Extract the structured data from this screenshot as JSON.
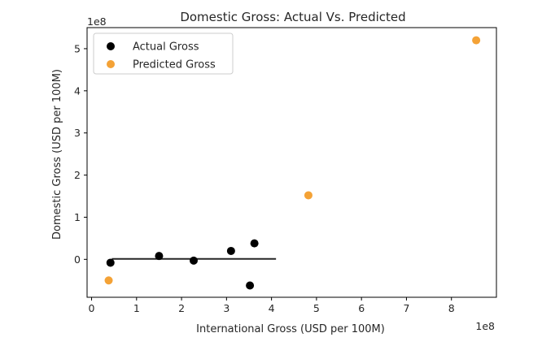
{
  "chart_data": {
    "type": "scatter",
    "title": "Domestic Gross: Actual Vs. Predicted",
    "xlabel": "International Gross (USD per 100M)",
    "ylabel": "Domestic Gross (USD per 100M)",
    "x_offset_text": "1e8",
    "y_offset_text": "1e8",
    "xlim": [
      -0.1,
      9.0
    ],
    "ylim": [
      -0.9,
      5.5
    ],
    "xticks": [
      0,
      1,
      2,
      3,
      4,
      5,
      6,
      7,
      8
    ],
    "yticks": [
      0,
      1,
      2,
      3,
      4,
      5
    ],
    "legend_position": "top-left",
    "grid": false,
    "series": [
      {
        "name": "Actual Gross",
        "color": "#000000",
        "points": [
          {
            "x": 0.42,
            "y": -0.08
          },
          {
            "x": 1.5,
            "y": 0.08
          },
          {
            "x": 2.27,
            "y": -0.03
          },
          {
            "x": 3.1,
            "y": 0.2
          },
          {
            "x": 3.52,
            "y": -0.62
          },
          {
            "x": 3.62,
            "y": 0.38
          }
        ]
      },
      {
        "name": "Predicted Gross",
        "color": "#f4a236",
        "points": [
          {
            "x": 0.38,
            "y": -0.5
          },
          {
            "x": 4.82,
            "y": 1.52
          },
          {
            "x": 8.55,
            "y": 5.2
          }
        ]
      }
    ],
    "fit_line": {
      "color": "#262626",
      "x": [
        0.45,
        4.1
      ],
      "y": [
        0.01,
        0.01
      ]
    }
  }
}
